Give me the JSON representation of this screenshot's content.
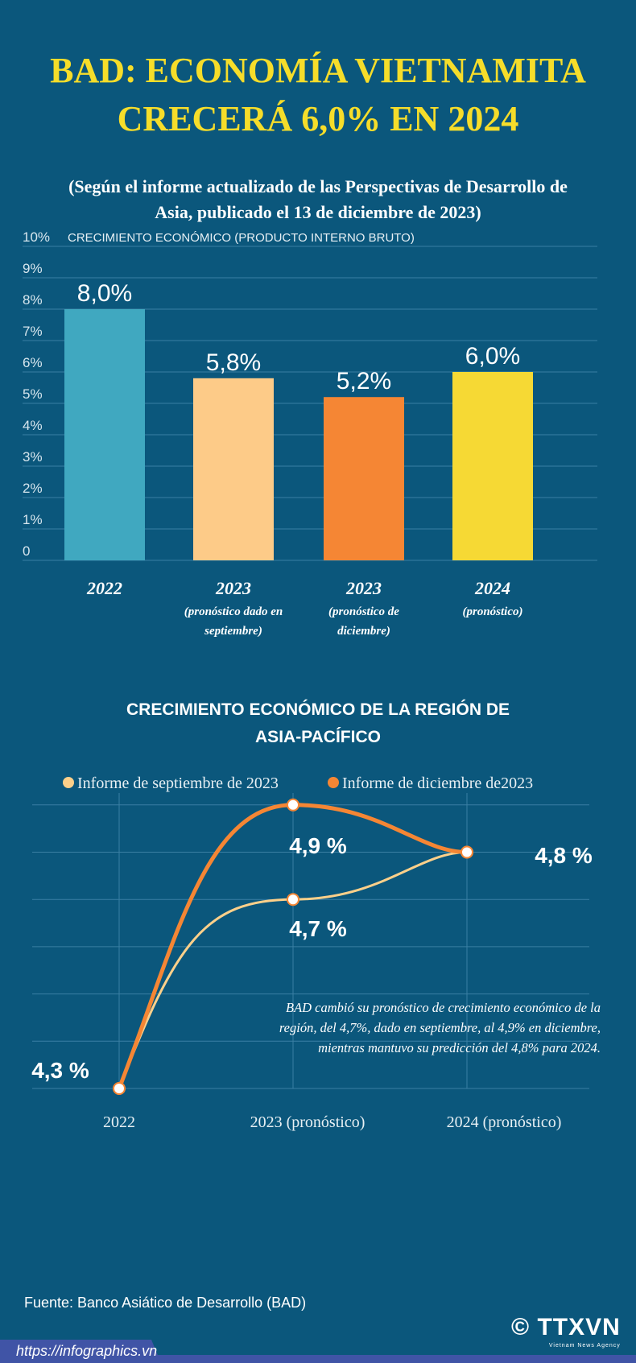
{
  "title_line1": "BAD: ECONOMÍA VIETNAMITA",
  "title_line2": "CRECERÁ 6,0% EN 2024",
  "subtitle_line1": "(Según el informe actualizado de las Perspectivas de Desarrollo de",
  "subtitle_line2": "Asia, publicado el 13 de diciembre de 2023)",
  "chart_data": [
    {
      "type": "bar",
      "title": "CRECIMIENTO ECONÓMICO (PRODUCTO INTERNO BRUTO)",
      "ylim": [
        0,
        10
      ],
      "yticks": [
        "0",
        "1%",
        "2%",
        "3%",
        "4%",
        "5%",
        "6%",
        "7%",
        "8%",
        "9%",
        "10%"
      ],
      "grid": true,
      "categories": [
        {
          "label": "2022",
          "note": ""
        },
        {
          "label": "2023",
          "note": "(pronóstico dado en septiembre)",
          "note_lines": [
            "(pronóstico dado en",
            "septiembre)"
          ]
        },
        {
          "label": "2023",
          "note": "(pronóstico de diciembre)",
          "note_lines": [
            "(pronóstico de",
            "diciembre)"
          ]
        },
        {
          "label": "2024",
          "note": "(pronóstico)",
          "note_lines": [
            "(pronóstico)"
          ]
        }
      ],
      "values": [
        8.0,
        5.8,
        5.2,
        6.0
      ],
      "value_labels": [
        "8,0%",
        "5,8%",
        "5,2%",
        "6,0%"
      ],
      "colors": [
        "#40a8c0",
        "#fdcb88",
        "#f58634",
        "#f6d934"
      ]
    },
    {
      "type": "line",
      "title_lines": [
        "CRECIMIENTO ECONÓMICO DE LA REGIÓN DE",
        "ASIA-PACÍFICO"
      ],
      "categories": [
        "2022",
        "2023 (pronóstico)",
        "2024 (pronóstico)"
      ],
      "ylim": [
        4.3,
        4.9
      ],
      "grid": true,
      "legend_placement": "top",
      "series": [
        {
          "name": "Informe de septiembre de 2023",
          "values": [
            4.3,
            4.7,
            4.8
          ],
          "color": "#fdd08a"
        },
        {
          "name": "Informe de diciembre de2023",
          "values": [
            4.3,
            4.9,
            4.8
          ],
          "color": "#f58634"
        }
      ],
      "point_labels": [
        {
          "text": "4,3 %",
          "value": 4.3
        },
        {
          "text": "4,7 %",
          "value": 4.7
        },
        {
          "text": "4,9 %",
          "value": 4.9
        },
        {
          "text": "4,8 %",
          "value": 4.8
        }
      ],
      "annotation_lines": [
        "BAD cambió su pronóstico de crecimiento económico de la",
        "región, del 4,7%, dado en septiembre, al 4,9% en diciembre,",
        "mientras mantuvo su predicción del 4,8% para 2024."
      ]
    }
  ],
  "source": "Fuente: Banco Asiático de Desarrollo (BAD)",
  "url": "https://infographics.vn",
  "logo": {
    "text": "© TTXVN",
    "sub": "Vietnam News Agency"
  }
}
